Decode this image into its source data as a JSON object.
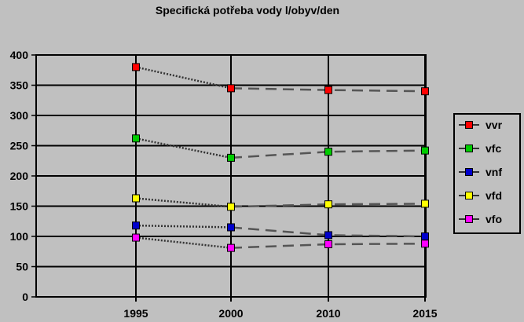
{
  "chart_data": {
    "type": "line",
    "title": "Specifická potřeba vody l/obyv/den",
    "xlabel": "",
    "ylabel": "",
    "categories": [
      "1995",
      "2000",
      "2010",
      "2015"
    ],
    "ylim": [
      0,
      400
    ],
    "yticks": [
      0,
      50,
      100,
      150,
      200,
      250,
      300,
      350,
      400
    ],
    "grid": true,
    "legend_position": "right",
    "series": [
      {
        "name": "vvr",
        "color": "#ff0000",
        "values": [
          380,
          345,
          342,
          340
        ]
      },
      {
        "name": "vfc",
        "color": "#00cc00",
        "values": [
          262,
          230,
          240,
          242
        ]
      },
      {
        "name": "vnf",
        "color": "#0000cc",
        "values": [
          118,
          115,
          102,
          100
        ]
      },
      {
        "name": "vfd",
        "color": "#ffff00",
        "values": [
          163,
          149,
          153,
          154
        ]
      },
      {
        "name": "vfo",
        "color": "#ff00ff",
        "values": [
          98,
          81,
          87,
          88
        ]
      }
    ],
    "line_style_note": "dotted for 1995-2000, dashed for 2000-2015"
  }
}
